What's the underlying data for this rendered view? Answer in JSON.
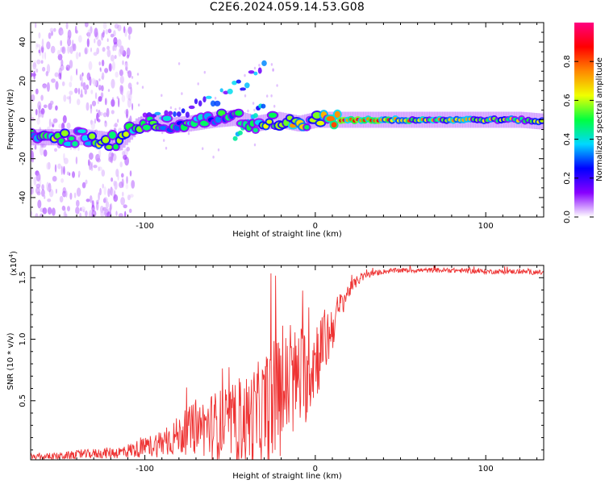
{
  "title": "C2E6.2024.059.14.53.G08",
  "chart_data": [
    {
      "type": "heatmap",
      "xlabel": "Height of straight line (km)",
      "ylabel": "Frequency (Hz)",
      "xlim": [
        -167,
        134
      ],
      "ylim": [
        -50,
        50
      ],
      "xticks": [
        -100,
        0,
        100
      ],
      "xtick_labels": [
        "-100",
        "0",
        "100"
      ],
      "yticks": [
        40,
        20,
        0,
        -20,
        -40
      ],
      "ytick_labels": [
        "40",
        "20",
        "0",
        "-20",
        "-40"
      ],
      "colorbar": {
        "label": "Normalized spectral amplitude",
        "range": [
          0,
          1
        ],
        "ticks": [
          0.0,
          0.2,
          0.4,
          0.6,
          0.8
        ],
        "tick_labels": [
          "0.0",
          "0.2",
          "0.4",
          "0.6",
          "0.8"
        ],
        "colormap": [
          "#ffffff",
          "#8800ff",
          "#0000ff",
          "#00d8ff",
          "#00ff40",
          "#f0ff00",
          "#ff8800",
          "#ff0000",
          "#ff0080"
        ]
      },
      "ridge": [
        {
          "x": -167,
          "y": -9,
          "a": 0.45
        },
        {
          "x": -150,
          "y": -9,
          "a": 0.5
        },
        {
          "x": -135,
          "y": -9,
          "a": 0.45
        },
        {
          "x": -125,
          "y": -10,
          "a": 0.6
        },
        {
          "x": -115,
          "y": -12,
          "a": 0.5
        },
        {
          "x": -105,
          "y": -3,
          "a": 0.4
        },
        {
          "x": -95,
          "y": -1,
          "a": 0.45
        },
        {
          "x": -85,
          "y": -3,
          "a": 0.4
        },
        {
          "x": -75,
          "y": -2,
          "a": 0.4
        },
        {
          "x": -60,
          "y": 0,
          "a": 0.4
        },
        {
          "x": -48,
          "y": 1,
          "a": 0.4
        },
        {
          "x": -35,
          "y": -2,
          "a": 0.35
        },
        {
          "x": -22,
          "y": 0,
          "a": 0.7
        },
        {
          "x": -10,
          "y": -2,
          "a": 0.55
        },
        {
          "x": 0,
          "y": 0,
          "a": 0.5
        },
        {
          "x": 20,
          "y": 0,
          "a": 0.85
        },
        {
          "x": 40,
          "y": 0,
          "a": 0.75
        },
        {
          "x": 60,
          "y": 0,
          "a": 0.65
        },
        {
          "x": 80,
          "y": 0,
          "a": 0.6
        },
        {
          "x": 100,
          "y": 0,
          "a": 0.6
        },
        {
          "x": 120,
          "y": 0,
          "a": 0.55
        },
        {
          "x": 134,
          "y": -1,
          "a": 0.5
        }
      ],
      "upper_branch": [
        {
          "x": -100,
          "y": 0
        },
        {
          "x": -80,
          "y": 4
        },
        {
          "x": -60,
          "y": 10
        },
        {
          "x": -40,
          "y": 20
        },
        {
          "x": -30,
          "y": 27
        }
      ],
      "slant_branch": [
        {
          "x": -47,
          "y": -9
        },
        {
          "x": -30,
          "y": 8
        }
      ]
    },
    {
      "type": "line",
      "xlabel": "Height of straight line (km)",
      "ylabel": "SNR (10 * v/v)",
      "y_multiplier": "(x10",
      "y_multiplier_exp": "4",
      "y_multiplier_close": ")",
      "xlim": [
        -167,
        134
      ],
      "ylim": [
        0.02,
        1.6
      ],
      "xticks": [
        -100,
        0,
        100
      ],
      "xtick_labels": [
        "-100",
        "0",
        "100"
      ],
      "yticks": [
        0.5,
        1.0,
        1.5
      ],
      "ytick_labels": [
        "0.5",
        "1.0",
        "1.5"
      ],
      "series_color": "#ee3333",
      "series": [
        {
          "x": [
            -167,
            -150,
            -130,
            -115,
            -100,
            -90,
            -80,
            -70,
            -60,
            -50,
            -40,
            -30,
            -25,
            -20,
            -15,
            -10,
            -5,
            0,
            5,
            10,
            15,
            20,
            25,
            30,
            40,
            50,
            60,
            80,
            100,
            120,
            134
          ],
          "y": [
            0.04,
            0.05,
            0.07,
            0.08,
            0.12,
            0.16,
            0.22,
            0.28,
            0.3,
            0.32,
            0.34,
            0.42,
            0.5,
            0.55,
            0.62,
            0.68,
            0.72,
            0.85,
            0.95,
            1.1,
            1.28,
            1.4,
            1.48,
            1.52,
            1.55,
            1.56,
            1.56,
            1.56,
            1.55,
            1.55,
            1.54
          ],
          "spread": [
            0.02,
            0.03,
            0.04,
            0.05,
            0.08,
            0.12,
            0.16,
            0.22,
            0.28,
            0.3,
            0.38,
            0.45,
            0.5,
            0.5,
            0.45,
            0.45,
            0.4,
            0.35,
            0.3,
            0.2,
            0.12,
            0.06,
            0.04,
            0.03,
            0.02,
            0.02,
            0.02,
            0.02,
            0.02,
            0.02,
            0.02
          ]
        }
      ]
    }
  ]
}
